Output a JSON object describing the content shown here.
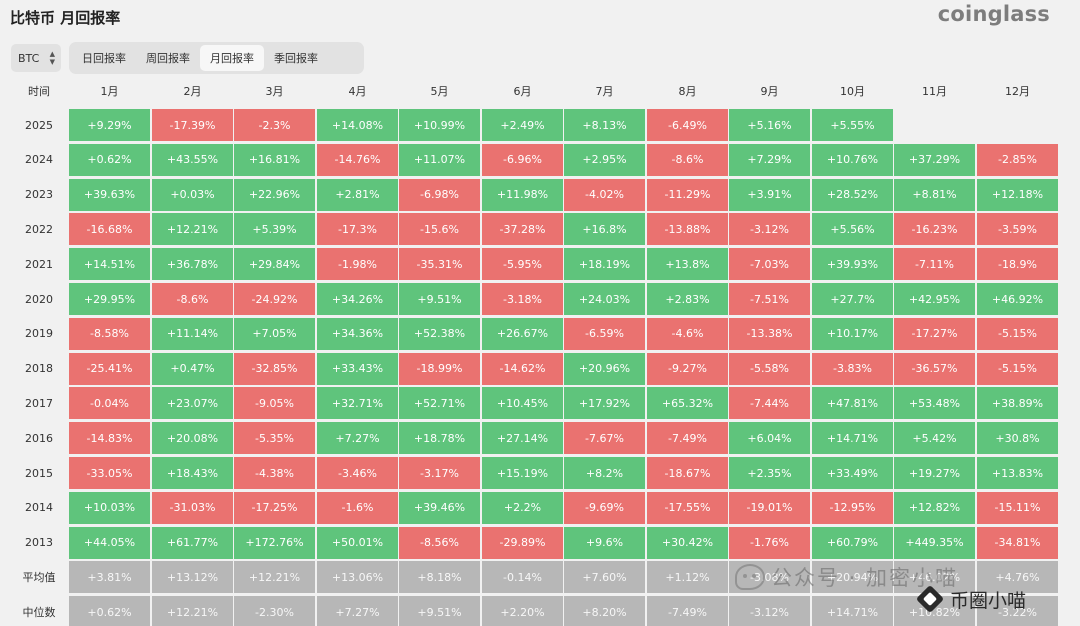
{
  "page_title": "比特币 月回报率",
  "brand": "coinglass",
  "asset_select": {
    "value": "BTC"
  },
  "tabs": [
    {
      "label": "日回报率",
      "active": false
    },
    {
      "label": "周回报率",
      "active": false
    },
    {
      "label": "月回报率",
      "active": true
    },
    {
      "label": "季回报率",
      "active": false
    }
  ],
  "table": {
    "time_header": "时间",
    "months": [
      "1月",
      "2月",
      "3月",
      "4月",
      "5月",
      "6月",
      "7月",
      "8月",
      "9月",
      "10月",
      "11月",
      "12月"
    ],
    "rows": [
      {
        "year": "2025",
        "values": [
          "+9.29%",
          "-17.39%",
          "-2.3%",
          "+14.08%",
          "+10.99%",
          "+2.49%",
          "+8.13%",
          "-6.49%",
          "+5.16%",
          "+5.55%",
          "",
          ""
        ]
      },
      {
        "year": "2024",
        "values": [
          "+0.62%",
          "+43.55%",
          "+16.81%",
          "-14.76%",
          "+11.07%",
          "-6.96%",
          "+2.95%",
          "-8.6%",
          "+7.29%",
          "+10.76%",
          "+37.29%",
          "-2.85%"
        ]
      },
      {
        "year": "2023",
        "values": [
          "+39.63%",
          "+0.03%",
          "+22.96%",
          "+2.81%",
          "-6.98%",
          "+11.98%",
          "-4.02%",
          "-11.29%",
          "+3.91%",
          "+28.52%",
          "+8.81%",
          "+12.18%"
        ]
      },
      {
        "year": "2022",
        "values": [
          "-16.68%",
          "+12.21%",
          "+5.39%",
          "-17.3%",
          "-15.6%",
          "-37.28%",
          "+16.8%",
          "-13.88%",
          "-3.12%",
          "+5.56%",
          "-16.23%",
          "-3.59%"
        ]
      },
      {
        "year": "2021",
        "values": [
          "+14.51%",
          "+36.78%",
          "+29.84%",
          "-1.98%",
          "-35.31%",
          "-5.95%",
          "+18.19%",
          "+13.8%",
          "-7.03%",
          "+39.93%",
          "-7.11%",
          "-18.9%"
        ]
      },
      {
        "year": "2020",
        "values": [
          "+29.95%",
          "-8.6%",
          "-24.92%",
          "+34.26%",
          "+9.51%",
          "-3.18%",
          "+24.03%",
          "+2.83%",
          "-7.51%",
          "+27.7%",
          "+42.95%",
          "+46.92%"
        ]
      },
      {
        "year": "2019",
        "values": [
          "-8.58%",
          "+11.14%",
          "+7.05%",
          "+34.36%",
          "+52.38%",
          "+26.67%",
          "-6.59%",
          "-4.6%",
          "-13.38%",
          "+10.17%",
          "-17.27%",
          "-5.15%"
        ]
      },
      {
        "year": "2018",
        "values": [
          "-25.41%",
          "+0.47%",
          "-32.85%",
          "+33.43%",
          "-18.99%",
          "-14.62%",
          "+20.96%",
          "-9.27%",
          "-5.58%",
          "-3.83%",
          "-36.57%",
          "-5.15%"
        ]
      },
      {
        "year": "2017",
        "values": [
          "-0.04%",
          "+23.07%",
          "-9.05%",
          "+32.71%",
          "+52.71%",
          "+10.45%",
          "+17.92%",
          "+65.32%",
          "-7.44%",
          "+47.81%",
          "+53.48%",
          "+38.89%"
        ]
      },
      {
        "year": "2016",
        "values": [
          "-14.83%",
          "+20.08%",
          "-5.35%",
          "+7.27%",
          "+18.78%",
          "+27.14%",
          "-7.67%",
          "-7.49%",
          "+6.04%",
          "+14.71%",
          "+5.42%",
          "+30.8%"
        ]
      },
      {
        "year": "2015",
        "values": [
          "-33.05%",
          "+18.43%",
          "-4.38%",
          "-3.46%",
          "-3.17%",
          "+15.19%",
          "+8.2%",
          "-18.67%",
          "+2.35%",
          "+33.49%",
          "+19.27%",
          "+13.83%"
        ]
      },
      {
        "year": "2014",
        "values": [
          "+10.03%",
          "-31.03%",
          "-17.25%",
          "-1.6%",
          "+39.46%",
          "+2.2%",
          "-9.69%",
          "-17.55%",
          "-19.01%",
          "-12.95%",
          "+12.82%",
          "-15.11%"
        ]
      },
      {
        "year": "2013",
        "values": [
          "+44.05%",
          "+61.77%",
          "+172.76%",
          "+50.01%",
          "-8.56%",
          "-29.89%",
          "+9.6%",
          "+30.42%",
          "-1.76%",
          "+60.79%",
          "+449.35%",
          "-34.81%"
        ]
      }
    ],
    "stats": [
      {
        "label": "平均值",
        "values": [
          "+3.81%",
          "+13.12%",
          "+12.21%",
          "+13.06%",
          "+8.18%",
          "-0.14%",
          "+7.60%",
          "+1.12%",
          "-3.08%",
          "+20.94%",
          "+46.02%",
          "+4.76%"
        ]
      },
      {
        "label": "中位数",
        "values": [
          "+0.62%",
          "+12.21%",
          "-2.30%",
          "+7.27%",
          "+9.51%",
          "+2.20%",
          "+8.20%",
          "-7.49%",
          "-3.12%",
          "+14.71%",
          "+10.82%",
          "-3.22%"
        ]
      }
    ]
  },
  "watermarks": {
    "wechat": "公众号 · 加密小喵",
    "channel": "币圈小喵"
  },
  "colors": {
    "positive": "#5fc47c",
    "negative": "#ea7270",
    "stat": "#b7b7b7"
  }
}
